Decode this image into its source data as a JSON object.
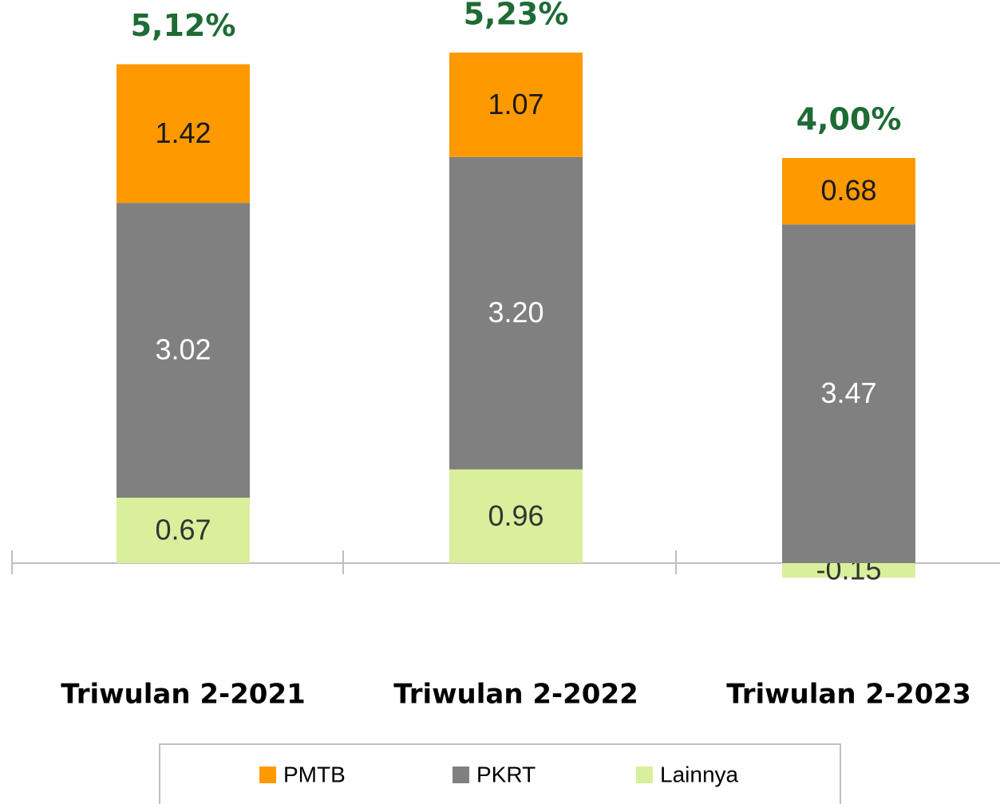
{
  "chart_data": {
    "type": "stacked_bar",
    "categories": [
      "Triwulan 2-2021",
      "Triwulan 2-2022",
      "Triwulan 2-2023"
    ],
    "series": [
      {
        "name": "PMTB",
        "color": "#ff9900",
        "values": [
          1.42,
          1.07,
          0.68
        ],
        "value_labels": [
          "1.42",
          "1.07",
          "0.68"
        ]
      },
      {
        "name": "PKRT",
        "color": "#808080",
        "values": [
          3.02,
          3.2,
          3.47
        ],
        "value_labels": [
          "3.02",
          "3.20",
          "3.47"
        ]
      },
      {
        "name": "Lainnya",
        "color": "#d9ef9c",
        "values": [
          0.67,
          0.96,
          -0.15
        ],
        "value_labels": [
          "0.67",
          "0.96",
          "-0.15"
        ]
      }
    ],
    "totals": {
      "values": [
        5.12,
        5.23,
        4.0
      ],
      "value_labels": [
        "5,12%",
        "5,23%",
        "4,00%"
      ]
    },
    "legend": "bottom"
  }
}
